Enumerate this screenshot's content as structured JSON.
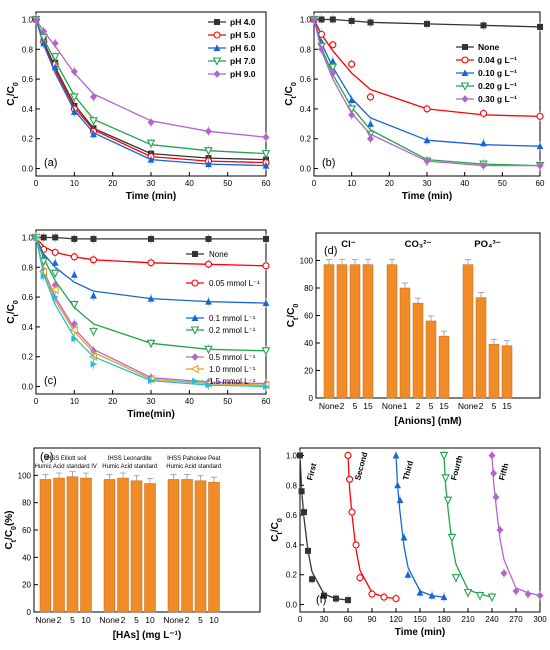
{
  "chart_data": [
    {
      "panel": "(a)",
      "type": "line",
      "xlabel": "Time (min)",
      "ylabel": "Ct/C0",
      "xlim": [
        0,
        60
      ],
      "ylim": [
        -0.05,
        1.05
      ],
      "xticks": [
        "0",
        "10",
        "20",
        "30",
        "40",
        "50",
        "60"
      ],
      "yticks": [
        "0.0",
        "0.2",
        "0.4",
        "0.6",
        "0.8",
        "1.0"
      ],
      "grid": false,
      "legend": "top-right",
      "x": [
        0,
        2,
        5,
        10,
        15,
        30,
        45,
        60
      ],
      "series": [
        {
          "name": "pH 4.0",
          "color": "#333333",
          "marker": "square",
          "values": [
            1.0,
            0.86,
            0.71,
            0.42,
            0.27,
            0.1,
            0.07,
            0.06
          ],
          "curve": [
            1.0,
            0.85,
            0.68,
            0.43,
            0.27,
            0.1,
            0.07,
            0.06
          ]
        },
        {
          "name": "pH 5.0",
          "color": "#ff0000",
          "marker": "circle",
          "values": [
            1.0,
            0.85,
            0.7,
            0.4,
            0.25,
            0.08,
            0.05,
            0.04
          ],
          "curve": [
            1.0,
            0.84,
            0.66,
            0.41,
            0.26,
            0.08,
            0.05,
            0.04
          ]
        },
        {
          "name": "pH 6.0",
          "color": "#1565d8",
          "marker": "triangle",
          "values": [
            1.0,
            0.84,
            0.68,
            0.38,
            0.23,
            0.06,
            0.03,
            0.02
          ],
          "curve": [
            1.0,
            0.83,
            0.64,
            0.39,
            0.24,
            0.06,
            0.03,
            0.02
          ]
        },
        {
          "name": "pH 7.0",
          "color": "#22a44a",
          "marker": "triangle-down",
          "values": [
            1.0,
            0.88,
            0.75,
            0.48,
            0.32,
            0.17,
            0.12,
            0.1
          ],
          "curve": [
            1.0,
            0.87,
            0.72,
            0.49,
            0.33,
            0.16,
            0.12,
            0.1
          ]
        },
        {
          "name": "pH 9.0",
          "color": "#b266cc",
          "marker": "diamond",
          "values": [
            1.0,
            0.92,
            0.84,
            0.65,
            0.48,
            0.31,
            0.25,
            0.21
          ],
          "curve": [
            1.0,
            0.92,
            0.82,
            0.64,
            0.5,
            0.32,
            0.25,
            0.21
          ]
        }
      ]
    },
    {
      "panel": "(b)",
      "type": "line",
      "xlabel": "Time (min)",
      "ylabel": "Ct/C0",
      "xlim": [
        0,
        60
      ],
      "ylim": [
        -0.05,
        1.05
      ],
      "xticks": [
        "0",
        "10",
        "20",
        "30",
        "40",
        "50",
        "60"
      ],
      "yticks": [
        "0.0",
        "0.2",
        "0.4",
        "0.6",
        "0.8",
        "1.0"
      ],
      "grid": false,
      "legend": "right",
      "x": [
        0,
        2,
        5,
        10,
        15,
        30,
        45,
        60
      ],
      "series": [
        {
          "name": "None",
          "color": "#333333",
          "marker": "square",
          "values": [
            1.0,
            1.0,
            1.0,
            0.99,
            0.98,
            0.97,
            0.96,
            0.95
          ],
          "curve": [
            1.0,
            1.0,
            1.0,
            0.99,
            0.98,
            0.97,
            0.96,
            0.95
          ]
        },
        {
          "name": "0.04 g L⁻¹",
          "color": "#ff0000",
          "marker": "circle",
          "values": [
            1.0,
            0.9,
            0.83,
            0.7,
            0.48,
            0.4,
            0.37,
            0.35
          ],
          "curve": [
            1.0,
            0.9,
            0.79,
            0.64,
            0.53,
            0.4,
            0.36,
            0.35
          ]
        },
        {
          "name": "0.10 g L⁻¹",
          "color": "#1565d8",
          "marker": "triangle",
          "values": [
            1.0,
            0.85,
            0.72,
            0.46,
            0.3,
            0.19,
            0.17,
            0.15
          ],
          "curve": [
            1.0,
            0.84,
            0.68,
            0.47,
            0.34,
            0.19,
            0.16,
            0.15
          ]
        },
        {
          "name": "0.20 g L⁻¹",
          "color": "#22a44a",
          "marker": "triangle-down",
          "values": [
            1.0,
            0.82,
            0.68,
            0.4,
            0.23,
            0.05,
            0.03,
            0.02
          ],
          "curve": [
            1.0,
            0.81,
            0.63,
            0.41,
            0.26,
            0.06,
            0.03,
            0.02
          ]
        },
        {
          "name": "0.30 g L⁻¹",
          "color": "#b266cc",
          "marker": "diamond",
          "values": [
            1.0,
            0.8,
            0.64,
            0.36,
            0.2,
            0.05,
            0.02,
            0.02
          ],
          "curve": [
            1.0,
            0.79,
            0.6,
            0.37,
            0.23,
            0.05,
            0.02,
            0.02
          ]
        }
      ]
    },
    {
      "panel": "(c)",
      "type": "line",
      "xlabel": "Time(min)",
      "ylabel": "Ct/C0",
      "xlim": [
        0,
        60
      ],
      "ylim": [
        -0.05,
        1.05
      ],
      "xticks": [
        "0",
        "10",
        "20",
        "30",
        "40",
        "50",
        "60"
      ],
      "yticks": [
        "0.0",
        "0.2",
        "0.4",
        "0.6",
        "0.8",
        "1.0"
      ],
      "grid": false,
      "legend": "right",
      "x": [
        0,
        2,
        5,
        10,
        15,
        30,
        45,
        60
      ],
      "series": [
        {
          "name": "None",
          "color": "#333333",
          "marker": "square",
          "values": [
            1.0,
            1.0,
            1.0,
            0.99,
            0.99,
            0.99,
            0.99,
            0.99
          ],
          "curve": [
            1.0,
            1.0,
            1.0,
            0.99,
            0.99,
            0.99,
            0.99,
            0.99
          ]
        },
        {
          "name": "0.05 mmol L⁻¹",
          "color": "#ff0000",
          "marker": "circle",
          "values": [
            1.0,
            0.92,
            0.9,
            0.87,
            0.85,
            0.83,
            0.82,
            0.81
          ],
          "curve": [
            1.0,
            0.94,
            0.9,
            0.87,
            0.85,
            0.83,
            0.82,
            0.81
          ]
        },
        {
          "name": "0.1 mmol L⁻¹",
          "color": "#1565d8",
          "marker": "triangle",
          "values": [
            1.0,
            0.87,
            0.83,
            0.75,
            0.61,
            0.59,
            0.57,
            0.56
          ],
          "curve": [
            1.0,
            0.89,
            0.8,
            0.7,
            0.64,
            0.59,
            0.57,
            0.56
          ]
        },
        {
          "name": "0.2 mmol L⁻¹",
          "color": "#22a44a",
          "marker": "triangle-down",
          "values": [
            1.0,
            0.84,
            0.76,
            0.55,
            0.37,
            0.29,
            0.25,
            0.24
          ],
          "curve": [
            1.0,
            0.86,
            0.71,
            0.53,
            0.42,
            0.29,
            0.25,
            0.24
          ]
        },
        {
          "name": "0.5 mmol L⁻¹",
          "color": "#b266cc",
          "marker": "diamond",
          "values": [
            1.0,
            0.78,
            0.68,
            0.42,
            0.24,
            0.06,
            0.03,
            0.02
          ],
          "curve": [
            1.0,
            0.78,
            0.6,
            0.39,
            0.25,
            0.06,
            0.03,
            0.02
          ]
        },
        {
          "name": "1.0 mmol L⁻¹",
          "color": "#e8a020",
          "marker": "triangle-left",
          "values": [
            1.0,
            0.77,
            0.65,
            0.38,
            0.2,
            0.05,
            0.02,
            0.01
          ],
          "curve": [
            1.0,
            0.77,
            0.58,
            0.37,
            0.23,
            0.05,
            0.02,
            0.01
          ]
        },
        {
          "name": "1.5 mmol L⁻¹",
          "color": "#20c0d8",
          "marker": "triangle-right",
          "values": [
            1.0,
            0.74,
            0.6,
            0.32,
            0.15,
            0.04,
            0.01,
            0.0
          ],
          "curve": [
            1.0,
            0.75,
            0.55,
            0.33,
            0.2,
            0.04,
            0.01,
            0.0
          ]
        }
      ]
    },
    {
      "panel": "(d)",
      "type": "bar",
      "xlabel": "[Anions] (mM)",
      "ylabel": "Ct/C0",
      "ylim": [
        0,
        120
      ],
      "yticks": [
        "0",
        "20",
        "40",
        "60",
        "80",
        "100"
      ],
      "groups": [
        {
          "name": "Cl⁻",
          "categories": [
            "None",
            "2",
            "5",
            "15"
          ],
          "values": [
            97,
            97,
            97,
            97
          ]
        },
        {
          "name": "CO₃²⁻",
          "categories": [
            "None",
            "1",
            "2",
            "5",
            "15"
          ],
          "values": [
            97,
            80,
            69,
            56,
            45
          ]
        },
        {
          "name": "PO₄³⁻",
          "categories": [
            "None",
            "2",
            "5",
            "15"
          ],
          "values": [
            97,
            73,
            39,
            38
          ]
        }
      ]
    },
    {
      "panel": "(e)",
      "type": "bar",
      "xlabel": "[HAs] (mg L⁻¹)",
      "ylabel": "Ct/C0(%)",
      "ylim": [
        0,
        120
      ],
      "yticks": [
        "0",
        "20",
        "40",
        "60",
        "80",
        "100"
      ],
      "groups": [
        {
          "name": "IHSS Elliott soil Humic Acid standard IV",
          "categories": [
            "None",
            "2",
            "5",
            "10"
          ],
          "values": [
            97,
            98,
            99,
            98
          ]
        },
        {
          "name": "IHSS Leonardite Humic Acid standard",
          "categories": [
            "None",
            "2",
            "5",
            "10"
          ],
          "values": [
            97,
            98,
            96,
            94
          ]
        },
        {
          "name": "IHSS Pahokee Peat Humic Acid standard",
          "categories": [
            "None",
            "2",
            "5",
            "10"
          ],
          "values": [
            97,
            97,
            96,
            95
          ]
        }
      ]
    },
    {
      "panel": "(f)",
      "type": "line",
      "xlabel": "Time (min)",
      "ylabel": "Ct/C0",
      "xlim": [
        0,
        300
      ],
      "ylim": [
        -0.05,
        1.05
      ],
      "xticks": [
        "0",
        "30",
        "60",
        "90",
        "120",
        "150",
        "180",
        "210",
        "240",
        "270",
        "300"
      ],
      "yticks": [
        "0.0",
        "0.2",
        "0.4",
        "0.6",
        "0.8",
        "1.0"
      ],
      "grid": false,
      "series": [
        {
          "name": "First",
          "color": "#333333",
          "marker": "square",
          "x": [
            0,
            2,
            5,
            10,
            15,
            30,
            45,
            60
          ],
          "values": [
            1.0,
            0.76,
            0.62,
            0.36,
            0.17,
            0.06,
            0.04,
            0.03
          ],
          "curve": [
            1.0,
            0.77,
            0.58,
            0.36,
            0.22,
            0.07,
            0.04,
            0.03
          ]
        },
        {
          "name": "Second",
          "color": "#ff0000",
          "marker": "circle",
          "x": [
            60,
            62,
            65,
            70,
            75,
            90,
            105,
            120
          ],
          "values": [
            1.0,
            0.84,
            0.62,
            0.4,
            0.18,
            0.07,
            0.05,
            0.04
          ],
          "curve": [
            1.0,
            0.78,
            0.6,
            0.37,
            0.23,
            0.08,
            0.05,
            0.04
          ]
        },
        {
          "name": "Third",
          "color": "#1565d8",
          "marker": "triangle",
          "x": [
            120,
            122,
            125,
            130,
            135,
            150,
            165,
            180
          ],
          "values": [
            1.0,
            0.8,
            0.7,
            0.45,
            0.2,
            0.08,
            0.06,
            0.05
          ],
          "curve": [
            1.0,
            0.79,
            0.62,
            0.39,
            0.25,
            0.09,
            0.06,
            0.05
          ]
        },
        {
          "name": "Fourth",
          "color": "#22a44a",
          "marker": "triangle-down",
          "x": [
            180,
            182,
            185,
            190,
            195,
            210,
            225,
            240
          ],
          "values": [
            1.0,
            0.85,
            0.7,
            0.45,
            0.18,
            0.08,
            0.06,
            0.05
          ],
          "curve": [
            1.0,
            0.8,
            0.64,
            0.41,
            0.27,
            0.1,
            0.07,
            0.05
          ]
        },
        {
          "name": "Fifth",
          "color": "#b266cc",
          "marker": "diamond",
          "x": [
            240,
            242,
            245,
            250,
            255,
            270,
            285,
            300
          ],
          "values": [
            1.0,
            0.88,
            0.72,
            0.5,
            0.21,
            0.09,
            0.07,
            0.06
          ],
          "curve": [
            1.0,
            0.82,
            0.67,
            0.44,
            0.3,
            0.11,
            0.08,
            0.06
          ]
        }
      ]
    }
  ],
  "labels": {
    "ylabel_ct": "Ct/C0"
  },
  "colors": {
    "bar_fill": "#f08c28",
    "bar_edge": "#c86414",
    "error": "#888888"
  }
}
